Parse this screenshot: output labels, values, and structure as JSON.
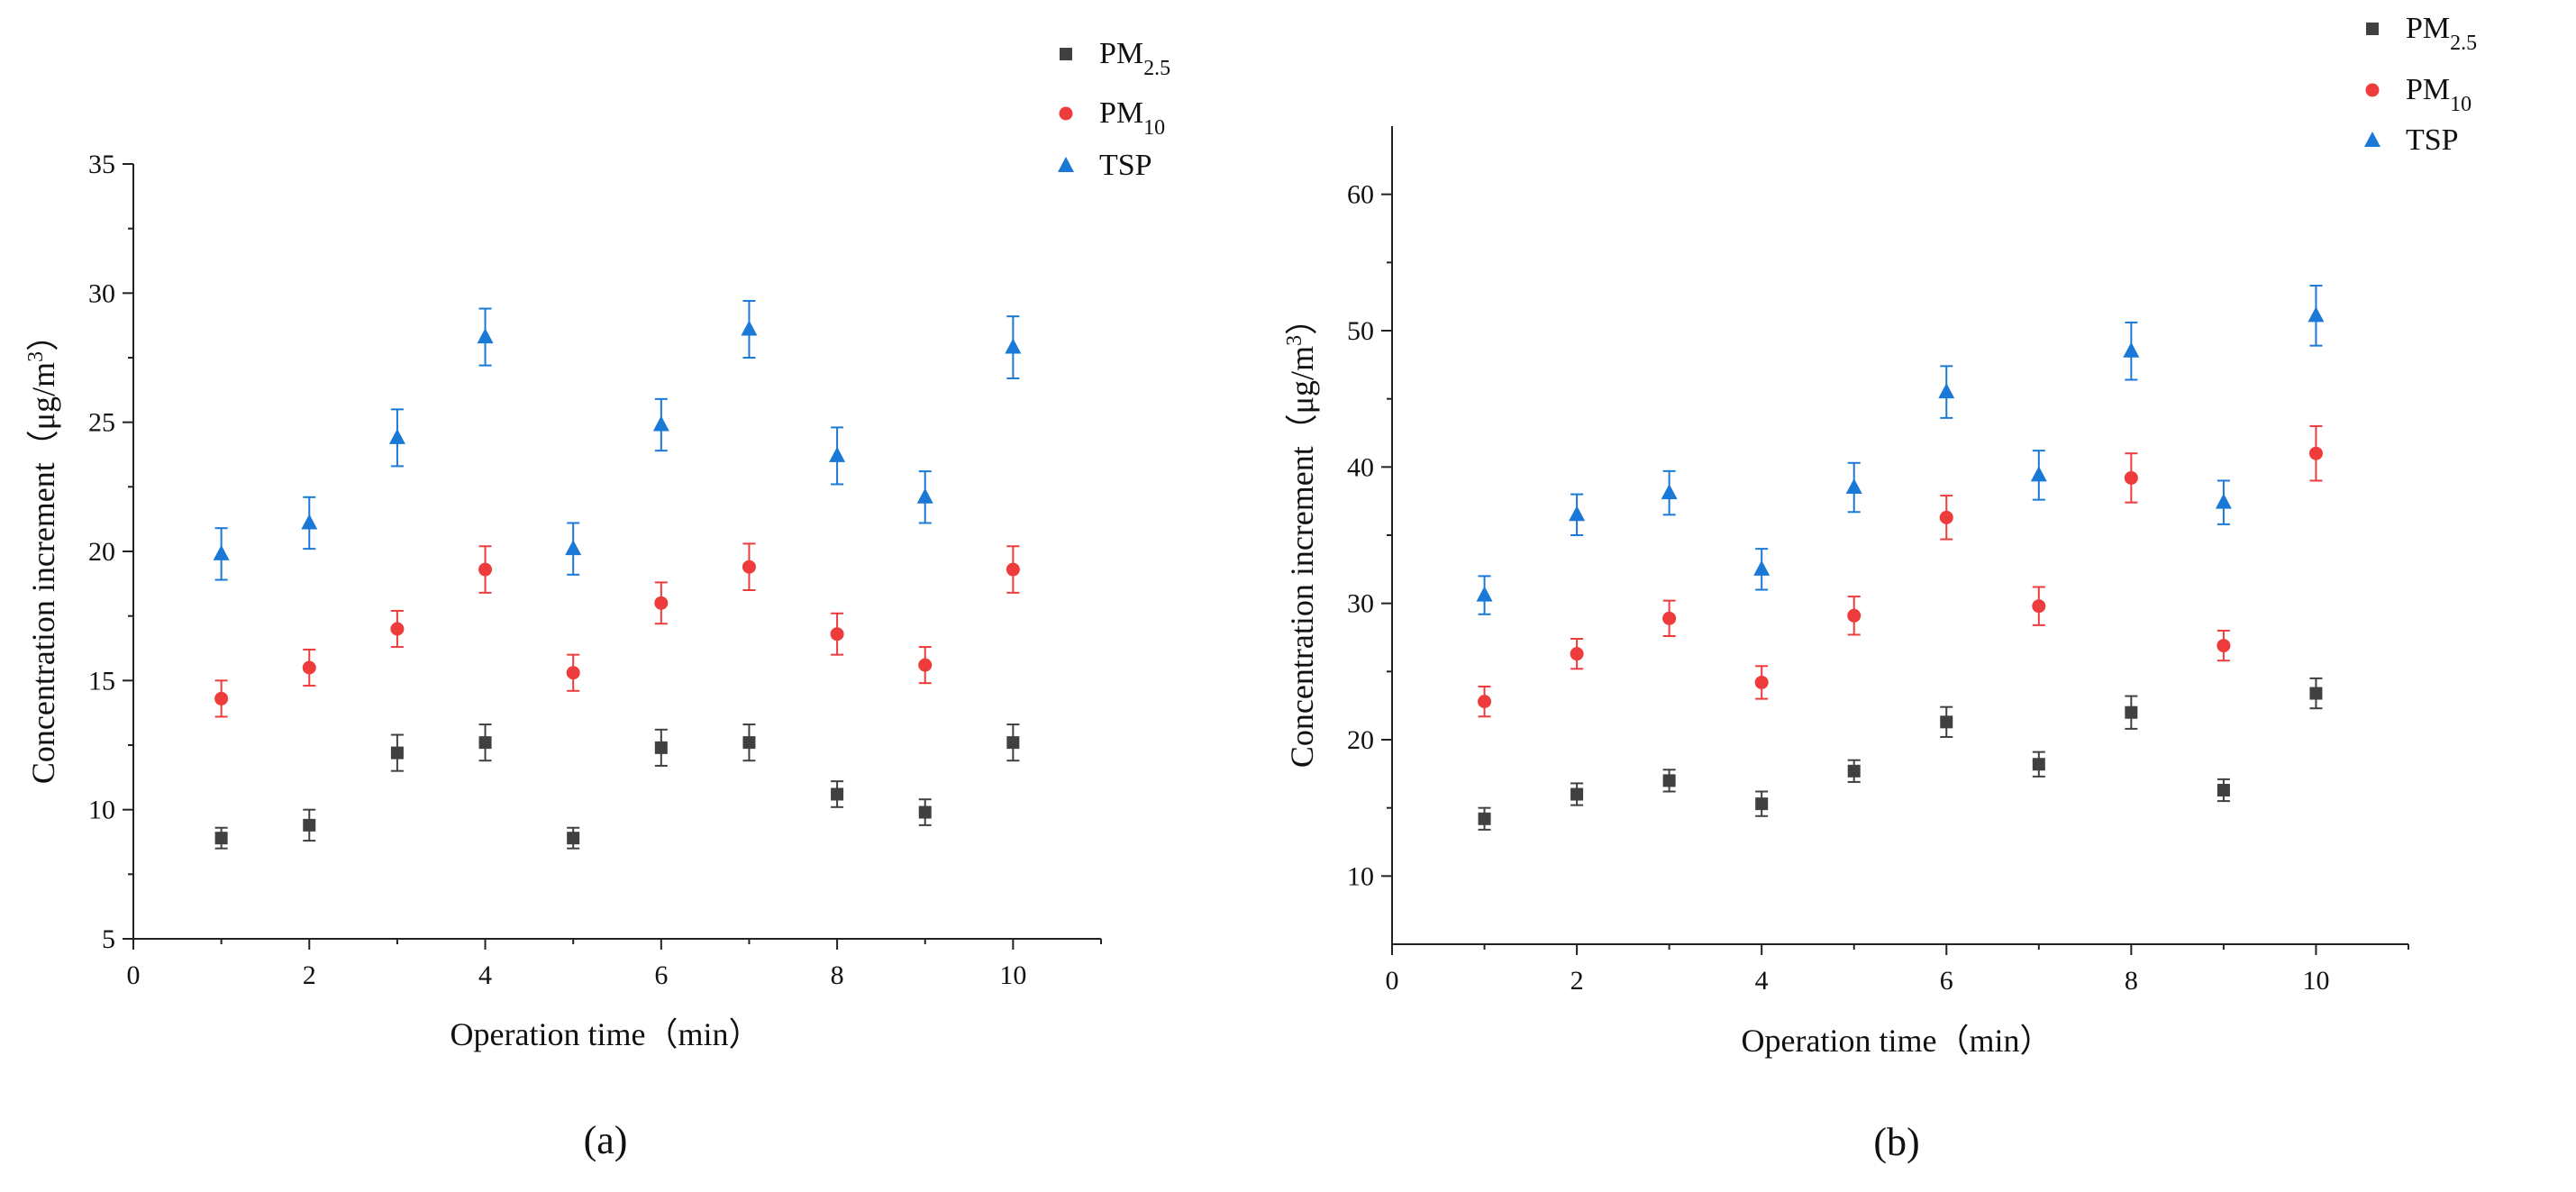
{
  "chart_data": [
    {
      "type": "scatter",
      "panel_label": "(a)",
      "xlabel": "Operation time（min）",
      "ylabel": "Concentration increment（μg/m",
      "ylabel_sup": "3",
      "ylabel_close": "）",
      "xlim": [
        0,
        11
      ],
      "ylim": [
        5,
        35
      ],
      "xticks": [
        0,
        2,
        4,
        6,
        8,
        10
      ],
      "xtick_labels": [
        "0",
        "2",
        "4",
        "6",
        "8",
        "10"
      ],
      "yticks": [
        5,
        10,
        15,
        20,
        25,
        30,
        35
      ],
      "ytick_labels": [
        "5",
        "10",
        "15",
        "20",
        "25",
        "30",
        "35"
      ],
      "legend_position": "top-right",
      "series": [
        {
          "name": "PM",
          "name_sub": "2.5",
          "marker": "square",
          "color": "#404040",
          "x": [
            1,
            2,
            3,
            4,
            5,
            6,
            7,
            8,
            9,
            10
          ],
          "y": [
            8.9,
            9.4,
            12.2,
            12.6,
            8.9,
            12.4,
            12.6,
            10.6,
            9.9,
            12.6
          ],
          "err": [
            0.4,
            0.6,
            0.7,
            0.7,
            0.4,
            0.7,
            0.7,
            0.5,
            0.5,
            0.7
          ]
        },
        {
          "name": "PM",
          "name_sub": "10",
          "marker": "circle",
          "color": "#ee3b3b",
          "x": [
            1,
            2,
            3,
            4,
            5,
            6,
            7,
            8,
            9,
            10
          ],
          "y": [
            14.3,
            15.5,
            17.0,
            19.3,
            15.3,
            18.0,
            19.4,
            16.8,
            15.6,
            19.3
          ],
          "err": [
            0.7,
            0.7,
            0.7,
            0.9,
            0.7,
            0.8,
            0.9,
            0.8,
            0.7,
            0.9
          ]
        },
        {
          "name": "TSP",
          "name_sub": "",
          "marker": "triangle",
          "color": "#1a78d6",
          "x": [
            1,
            2,
            3,
            4,
            5,
            6,
            7,
            8,
            9,
            10
          ],
          "y": [
            19.9,
            21.1,
            24.4,
            28.3,
            20.1,
            24.9,
            28.6,
            23.7,
            22.1,
            27.9
          ],
          "err": [
            1.0,
            1.0,
            1.1,
            1.1,
            1.0,
            1.0,
            1.1,
            1.1,
            1.0,
            1.2
          ]
        }
      ]
    },
    {
      "type": "scatter",
      "panel_label": "(b)",
      "xlabel": "Operation time（min）",
      "ylabel": "Concentration increment（μg/m",
      "ylabel_sup": "3",
      "ylabel_close": "）",
      "xlim": [
        0,
        11
      ],
      "ylim": [
        5,
        65
      ],
      "xticks": [
        0,
        2,
        4,
        6,
        8,
        10
      ],
      "xtick_labels": [
        "0",
        "2",
        "4",
        "6",
        "8",
        "10"
      ],
      "yticks": [
        10,
        20,
        30,
        40,
        50,
        60
      ],
      "ytick_labels": [
        "10",
        "20",
        "30",
        "40",
        "50",
        "60"
      ],
      "legend_position": "top-right",
      "series": [
        {
          "name": "PM",
          "name_sub": "2.5",
          "marker": "square",
          "color": "#404040",
          "x": [
            1,
            2,
            3,
            4,
            5,
            6,
            7,
            8,
            9,
            10
          ],
          "y": [
            14.2,
            16.0,
            17.0,
            15.3,
            17.7,
            21.3,
            18.2,
            22.0,
            16.3,
            23.4
          ],
          "err": [
            0.8,
            0.8,
            0.8,
            0.9,
            0.8,
            1.1,
            0.9,
            1.2,
            0.8,
            1.1
          ]
        },
        {
          "name": "PM",
          "name_sub": "10",
          "marker": "circle",
          "color": "#ee3b3b",
          "x": [
            1,
            2,
            3,
            4,
            5,
            6,
            7,
            8,
            9,
            10
          ],
          "y": [
            22.8,
            26.3,
            28.9,
            24.2,
            29.1,
            36.3,
            29.8,
            39.2,
            26.9,
            41.0
          ],
          "err": [
            1.1,
            1.1,
            1.3,
            1.2,
            1.4,
            1.6,
            1.4,
            1.8,
            1.1,
            2.0
          ]
        },
        {
          "name": "TSP",
          "name_sub": "",
          "marker": "triangle",
          "color": "#1a78d6",
          "x": [
            1,
            2,
            3,
            4,
            5,
            6,
            7,
            8,
            9,
            10
          ],
          "y": [
            30.6,
            36.5,
            38.1,
            32.5,
            38.5,
            45.5,
            39.4,
            48.5,
            37.4,
            51.1
          ],
          "err": [
            1.4,
            1.5,
            1.6,
            1.5,
            1.8,
            1.9,
            1.8,
            2.1,
            1.6,
            2.2
          ]
        }
      ]
    }
  ]
}
